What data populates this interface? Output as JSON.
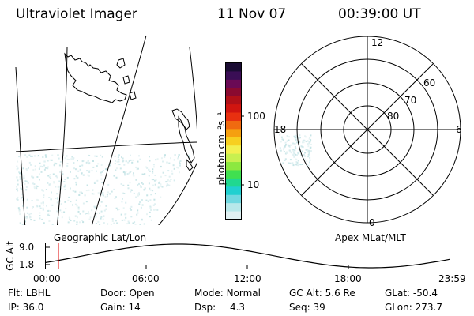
{
  "header": {
    "instrument": "Ultraviolet Imager",
    "date": "11 Nov 07",
    "time": "00:39:00 UT"
  },
  "colorbar": {
    "unit_label": "photon cm⁻²s⁻¹",
    "tick_labels": [
      "100",
      "10"
    ],
    "colors": [
      "#1a0c33",
      "#3a0e55",
      "#6a0a55",
      "#8a0a30",
      "#b01018",
      "#d01510",
      "#e83010",
      "#f06a10",
      "#f5a010",
      "#f7cf20",
      "#f2f050",
      "#c8f050",
      "#8ce840",
      "#40e050",
      "#20d890",
      "#20d0d0",
      "#70d8e0",
      "#b8e8ea",
      "#e0f0f2"
    ]
  },
  "geo_panel": {
    "label": "Geographic Lat/Lon"
  },
  "polar_panel": {
    "label": "Apex MLat/MLT",
    "mlt_labels": [
      "12",
      "18",
      "6",
      "0"
    ],
    "lat_labels": [
      "60",
      "70",
      "80"
    ]
  },
  "altitude_plot": {
    "ylabel": "GC Alt",
    "y_ticks": [
      "9.0",
      "1.8"
    ],
    "x_ticks": [
      "00:00",
      "06:00",
      "12:00",
      "18:00",
      "23:59"
    ],
    "marker_color": "#e00000"
  },
  "status": {
    "flt_label": "Flt:",
    "flt_value": "LBHL",
    "door_label": "Door:",
    "door_value": "Open",
    "mode_label": "Mode:",
    "mode_value": "Normal",
    "gcalt_label": "GC Alt:",
    "gcalt_value": "5.6 Re",
    "glat_label": "GLat:",
    "glat_value": "-50.4",
    "ip_label": "IP:",
    "ip_value": "36.0",
    "gain_label": "Gain:",
    "gain_value": "14",
    "dsp_label": "Dsp:",
    "dsp_value": "4.3",
    "seq_label": "Seq:",
    "seq_value": "39",
    "glon_label": "GLon:",
    "glon_value": "273.7"
  }
}
